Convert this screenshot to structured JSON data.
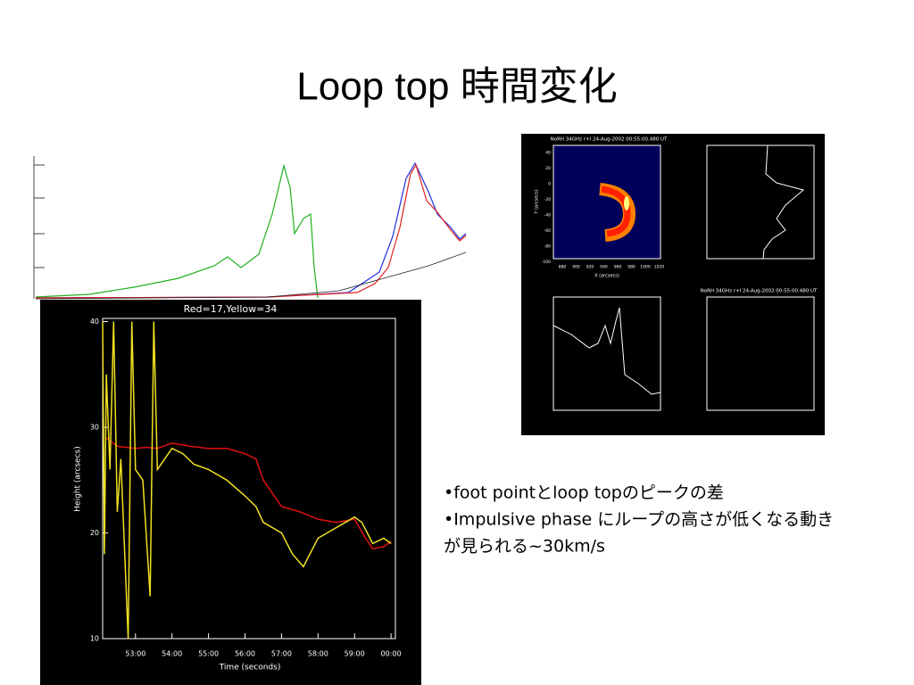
{
  "header": {
    "title": "Loop top 時間変化"
  },
  "bullet_lines": [
    "•foot pointとloop topのピークの差",
    "•Impulsive phase にループの高さが低くなる動き",
    "が見られる~30km/s"
  ],
  "height_plot": {
    "title": "Red=17,Yellow=34",
    "y_label": "Height (arcsecs)",
    "x_label": "Time (seconds)",
    "ylim": [
      10,
      40.3
    ],
    "yticks": [
      10,
      20,
      30,
      40
    ],
    "xlim": [
      52.1,
      60.12
    ],
    "xticks": [
      {
        "value": 53,
        "label": "53:00"
      },
      {
        "value": 54,
        "label": "54:00"
      },
      {
        "value": 55,
        "label": "55:00"
      },
      {
        "value": 56,
        "label": "56:00"
      },
      {
        "value": 57,
        "label": "57:00"
      },
      {
        "value": 58,
        "label": "58:00"
      },
      {
        "value": 59,
        "label": "59:00"
      },
      {
        "value": 60,
        "label": "00:00"
      }
    ],
    "series": [
      {
        "color": "#e01010",
        "x": [
          52.2,
          52.5,
          53.0,
          53.3,
          53.6,
          54.0,
          54.5,
          55.0,
          55.5,
          56.0,
          56.3,
          56.5,
          57.0,
          57.5,
          58.0,
          58.5,
          59.0,
          59.3,
          59.5,
          59.8,
          60.0
        ],
        "values": [
          29.0,
          28.2,
          28.0,
          28.1,
          28.0,
          28.5,
          28.2,
          28.0,
          28.0,
          27.5,
          27.0,
          25.0,
          22.5,
          22.0,
          21.3,
          21.0,
          21.3,
          19.5,
          18.5,
          18.7,
          19.2
        ]
      },
      {
        "color": "#f0e020",
        "x": [
          52.1,
          52.15,
          52.2,
          52.3,
          52.4,
          52.5,
          52.6,
          52.8,
          52.9,
          53.0,
          53.2,
          53.4,
          53.5,
          53.6,
          53.8,
          54.0,
          54.3,
          54.6,
          55.0,
          55.5,
          56.0,
          56.3,
          56.5,
          57.0,
          57.3,
          57.6,
          58.0,
          58.5,
          59.0,
          59.2,
          59.5,
          59.8,
          60.0
        ],
        "values": [
          40,
          18,
          35,
          26,
          40,
          22,
          27,
          10,
          40,
          26,
          25,
          14,
          40,
          26,
          27,
          28,
          27.5,
          26.5,
          26,
          25,
          23.5,
          22.5,
          21,
          20,
          18,
          16.8,
          19.5,
          20.5,
          21.5,
          21,
          19,
          19.5,
          19.0
        ]
      }
    ]
  },
  "norh_panel": {
    "image_title": "NoRH 34GHz r+l 24-Aug-2002 00:55:00.480 UT",
    "profile_title": "NoRH 34GHz r+l 24-Aug-2002 00:55:00.480 UT",
    "x_label": "X (arcsecs)",
    "y_label": "Y (arcsecs)",
    "x_tick_labels": [
      "880",
      "900",
      "920",
      "940",
      "960",
      "980",
      "1000",
      "1020"
    ],
    "y_tick_labels": [
      "40",
      "20",
      "0",
      "-20",
      "-40",
      "-60",
      "-80",
      "-100"
    ]
  }
}
